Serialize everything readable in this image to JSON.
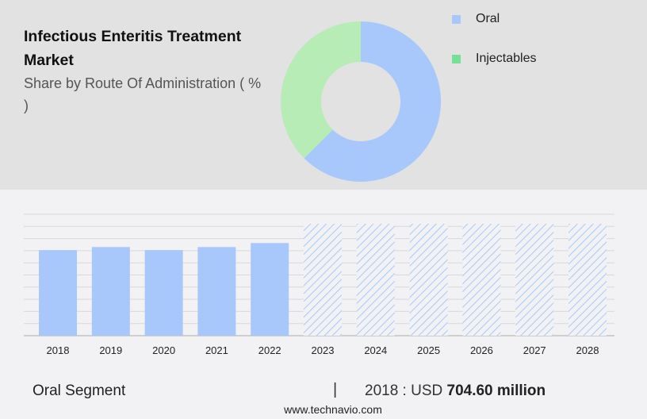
{
  "title": "Infectious Enteritis Treatment Market",
  "subtitle": "Share by Route Of Administration ( % )",
  "colors": {
    "oral": "#a8c8fc",
    "injectables_slice": "#b7ecb7",
    "injectables_legend": "#73e196",
    "forecast_hatch": "#a8c8fc"
  },
  "chart_data": [
    {
      "type": "pie",
      "variant": "donut",
      "series": [
        {
          "name": "Oral",
          "value": 62.5
        },
        {
          "name": "Injectables",
          "value": 37.5
        }
      ],
      "legend": [
        "Oral",
        "Injectables"
      ],
      "legend_placement": "right"
    },
    {
      "type": "bar",
      "categories": [
        "2018",
        "2019",
        "2020",
        "2021",
        "2022",
        "2023",
        "2024",
        "2025",
        "2026",
        "2027",
        "2028"
      ],
      "values": [
        704.6,
        730,
        705,
        730,
        763,
        null,
        null,
        null,
        null,
        null,
        null
      ],
      "forecast": [
        false,
        false,
        false,
        false,
        false,
        true,
        true,
        true,
        true,
        true,
        true
      ],
      "grid": true,
      "ylim": [
        0,
        1000
      ]
    }
  ],
  "footer": {
    "segment": "Oral Segment",
    "separator": "|",
    "year_label": "2018 : USD",
    "value": "704.60 million",
    "site": "www.technavio.com"
  }
}
